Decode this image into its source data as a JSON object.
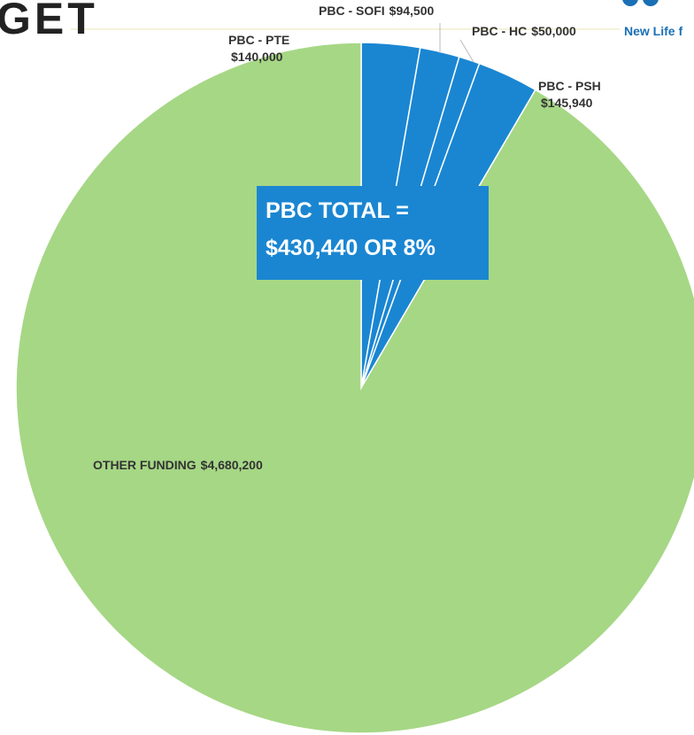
{
  "header": {
    "title_fragment": "GET",
    "logo_text": "New Life f"
  },
  "chart_data": {
    "type": "pie",
    "categories": [
      "PBC - PTE",
      "PBC - SOFI",
      "PBC - HC",
      "PBC - PSH",
      "OTHER FUNDING"
    ],
    "values": [
      140000,
      94500,
      50000,
      145940,
      4680200
    ],
    "value_labels": [
      "$140,000",
      "$94,500",
      "$50,000",
      "$145,940",
      "$4,680,200"
    ],
    "colors": [
      "#1a86d2",
      "#1a86d2",
      "#1a86d2",
      "#1a86d2",
      "#a6d785"
    ],
    "annotation": [
      "PBC TOTAL =",
      "$430,440 OR 8%"
    ]
  }
}
